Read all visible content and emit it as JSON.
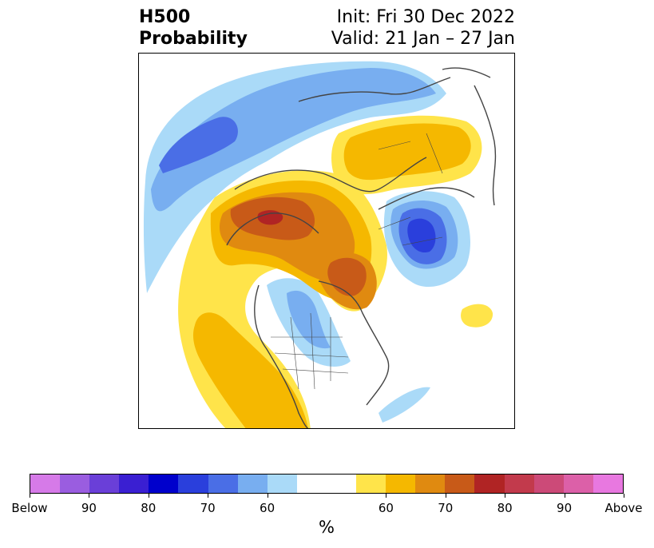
{
  "title": {
    "left_line1": "H500",
    "left_line2": "Probability",
    "right_line1": "Init: Fri 30 Dec 2022",
    "right_line2": "Valid: 21 Jan – 27 Jan"
  },
  "colorbar": {
    "colors": [
      "#d67ae8",
      "#9a5de0",
      "#6a3fd8",
      "#3a1fd2",
      "#0000cc",
      "#2a3fdc",
      "#4a6ee6",
      "#78aef0",
      "#aadaf8",
      "#ffffff",
      "#ffffff",
      "#ffe44a",
      "#f5b800",
      "#e08a10",
      "#c85a18",
      "#b02424",
      "#c23a4c",
      "#cc4a78",
      "#dc60a8",
      "#e878e0"
    ],
    "tick_labels": [
      "Below",
      "90",
      "80",
      "70",
      "60",
      "60",
      "70",
      "80",
      "90",
      "Above"
    ],
    "unit": "%"
  },
  "colors": {
    "below_light": "#aadaf8",
    "below_60": "#78aef0",
    "below_70": "#4a6ee6",
    "below_80": "#2a3fdc",
    "above_light": "#ffe44a",
    "above_60": "#f5b800",
    "above_70": "#e08a10",
    "above_80": "#c85a18",
    "above_90": "#b02424"
  }
}
